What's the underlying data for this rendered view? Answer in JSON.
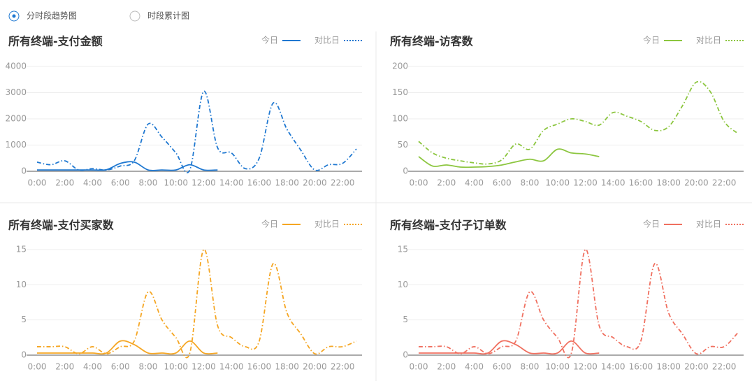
{
  "controls": {
    "options": [
      "分时段趋势图",
      "时段累计图"
    ],
    "selected": 0
  },
  "chart_data": [
    {
      "type": "line",
      "title": "所有终端-支付金额",
      "categories": [
        "0:00",
        null,
        "2:00",
        null,
        "4:00",
        null,
        "6:00",
        null,
        "8:00",
        null,
        "10:00",
        null,
        "12:00",
        null,
        "14:00",
        null,
        "16:00",
        null,
        "18:00",
        null,
        "20:00",
        null,
        "22:00",
        null
      ],
      "ylim": [
        0,
        4000
      ],
      "yticks": [
        0,
        1000,
        2000,
        3000,
        4000
      ],
      "grid": true,
      "series": [
        {
          "name": "今日",
          "color": "#1f78d1",
          "line_style": "solid",
          "values": [
            50,
            50,
            50,
            50,
            50,
            60,
            300,
            350,
            50,
            50,
            50,
            250,
            50,
            50,
            null,
            null,
            null,
            null,
            null,
            null,
            null,
            null,
            null,
            null
          ]
        },
        {
          "name": "对比日",
          "color": "#1f78d1",
          "line_style": "dashdot",
          "values": [
            350,
            250,
            400,
            50,
            100,
            50,
            200,
            400,
            1800,
            1300,
            700,
            50,
            3050,
            900,
            700,
            100,
            500,
            2600,
            1600,
            800,
            50,
            250,
            300,
            850
          ]
        }
      ]
    },
    {
      "type": "line",
      "title": "所有终端-访客数",
      "categories": [
        "0:00",
        null,
        "2:00",
        null,
        "4:00",
        null,
        "6:00",
        null,
        "8:00",
        null,
        "10:00",
        null,
        "12:00",
        null,
        "14:00",
        null,
        "16:00",
        null,
        "18:00",
        null,
        "20:00",
        null,
        "22:00",
        null
      ],
      "ylim": [
        0,
        200
      ],
      "yticks": [
        0,
        50,
        100,
        150,
        200
      ],
      "grid": true,
      "series": [
        {
          "name": "今日",
          "color": "#8cc63f",
          "line_style": "solid",
          "values": [
            28,
            10,
            12,
            8,
            8,
            9,
            12,
            18,
            23,
            20,
            42,
            35,
            33,
            28,
            null,
            null,
            null,
            null,
            null,
            null,
            null,
            null,
            null,
            null
          ]
        },
        {
          "name": "对比日",
          "color": "#8cc63f",
          "line_style": "dashdot",
          "values": [
            57,
            35,
            25,
            20,
            16,
            14,
            22,
            52,
            42,
            78,
            90,
            100,
            95,
            88,
            112,
            105,
            95,
            78,
            85,
            125,
            170,
            152,
            95,
            72
          ]
        }
      ]
    },
    {
      "type": "line",
      "title": "所有终端-支付买家数",
      "categories": [
        "0:00",
        null,
        "2:00",
        null,
        "4:00",
        null,
        "6:00",
        null,
        "8:00",
        null,
        "10:00",
        null,
        "12:00",
        null,
        "14:00",
        null,
        "16:00",
        null,
        "18:00",
        null,
        "20:00",
        null,
        "22:00",
        null
      ],
      "ylim": [
        0,
        15
      ],
      "yticks": [
        0,
        5,
        10,
        15
      ],
      "grid": true,
      "series": [
        {
          "name": "今日",
          "color": "#f5a623",
          "line_style": "solid",
          "values": [
            0.3,
            0.3,
            0.3,
            0.3,
            0.3,
            0.3,
            2,
            1.5,
            0.3,
            0.3,
            0.3,
            2,
            0.3,
            0.3,
            null,
            null,
            null,
            null,
            null,
            null,
            null,
            null,
            null,
            null
          ]
        },
        {
          "name": "对比日",
          "color": "#f5a623",
          "line_style": "dashdot",
          "values": [
            1.2,
            1.2,
            1.2,
            0.2,
            1.2,
            0.2,
            1.2,
            2,
            9,
            5,
            2.5,
            0.3,
            15,
            4.2,
            2.5,
            1.2,
            2,
            13,
            6,
            3,
            0.2,
            1.2,
            1.2,
            2
          ]
        }
      ]
    },
    {
      "type": "line",
      "title": "所有终端-支付子订单数",
      "categories": [
        "0:00",
        null,
        "2:00",
        null,
        "4:00",
        null,
        "6:00",
        null,
        "8:00",
        null,
        "10:00",
        null,
        "12:00",
        null,
        "14:00",
        null,
        "16:00",
        null,
        "18:00",
        null,
        "20:00",
        null,
        "22:00",
        null
      ],
      "ylim": [
        0,
        15
      ],
      "yticks": [
        0,
        5,
        10,
        15
      ],
      "grid": true,
      "series": [
        {
          "name": "今日",
          "color": "#f07060",
          "line_style": "solid",
          "values": [
            0.3,
            0.3,
            0.3,
            0.3,
            0.3,
            0.3,
            2,
            1.5,
            0.3,
            0.3,
            0.3,
            2,
            0.3,
            0.3,
            null,
            null,
            null,
            null,
            null,
            null,
            null,
            null,
            null,
            null
          ]
        },
        {
          "name": "对比日",
          "color": "#f07060",
          "line_style": "dashdot",
          "values": [
            1.2,
            1.2,
            1.2,
            0.2,
            1.2,
            0.2,
            1.2,
            2,
            9,
            5,
            2.5,
            0.3,
            15,
            4.2,
            2.5,
            1.2,
            2,
            13,
            6,
            3,
            0.2,
            1.2,
            1.2,
            3.2
          ]
        }
      ]
    }
  ]
}
